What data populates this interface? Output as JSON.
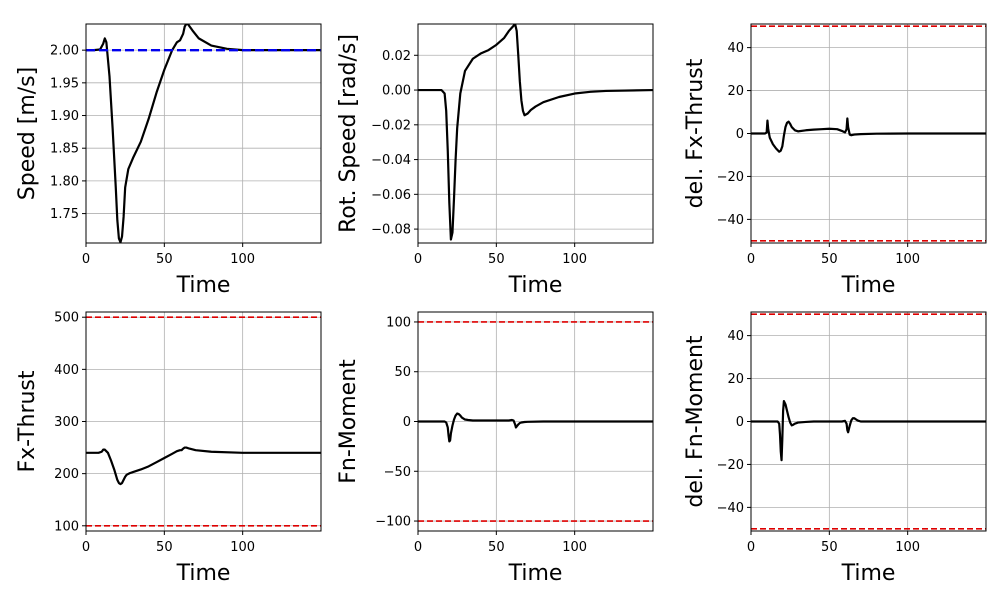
{
  "chart_data": [
    {
      "type": "line",
      "xlabel": "Time",
      "ylabel": "Speed [m/s]",
      "xlim": [
        0,
        150
      ],
      "ylim": [
        1.705,
        2.04
      ],
      "xticks": [
        0,
        50,
        100
      ],
      "xtick_labels": [
        "0",
        "50",
        "100"
      ],
      "yticks": [
        1.75,
        1.8,
        1.85,
        1.9,
        1.95,
        2.0
      ],
      "ytick_labels": [
        "1.75",
        "1.80",
        "1.85",
        "1.90",
        "1.95",
        "2.00"
      ],
      "grid": true,
      "series": [
        {
          "color": "#000000",
          "style": "solid",
          "x": [
            0,
            5,
            9,
            11,
            12,
            13,
            15,
            17,
            19,
            20,
            21,
            22,
            23,
            24,
            25,
            27,
            30,
            35,
            40,
            45,
            50,
            55,
            58,
            60,
            62,
            63,
            64,
            65,
            68,
            72,
            80,
            90,
            100,
            120,
            150
          ],
          "y": [
            2.0,
            2.0,
            2.001,
            2.01,
            2.018,
            2.012,
            1.96,
            1.88,
            1.79,
            1.74,
            1.712,
            1.706,
            1.715,
            1.745,
            1.79,
            1.818,
            1.835,
            1.86,
            1.895,
            1.935,
            1.97,
            2.0,
            2.012,
            2.015,
            2.025,
            2.036,
            2.04,
            2.04,
            2.03,
            2.018,
            2.007,
            2.002,
            2.0,
            2.0,
            2.0
          ]
        },
        {
          "color": "#0000ee",
          "style": "dashed",
          "x": [
            0,
            150
          ],
          "y": [
            2.0,
            2.0
          ]
        }
      ]
    },
    {
      "type": "line",
      "xlabel": "Time",
      "ylabel": "Rot. Speed [rad/s]",
      "xlim": [
        0,
        150
      ],
      "ylim": [
        -0.088,
        0.038
      ],
      "xticks": [
        0,
        50,
        100
      ],
      "xtick_labels": [
        "0",
        "50",
        "100"
      ],
      "yticks": [
        -0.08,
        -0.06,
        -0.04,
        -0.02,
        0.0,
        0.02
      ],
      "ytick_labels": [
        "−0.08",
        "−0.06",
        "−0.04",
        "−0.02",
        "0.00",
        "0.02"
      ],
      "grid": true,
      "series": [
        {
          "color": "#000000",
          "style": "solid",
          "x": [
            0,
            15,
            17,
            18,
            19,
            20,
            21,
            22,
            23,
            24,
            25,
            27,
            30,
            35,
            40,
            45,
            50,
            55,
            58,
            60,
            61,
            62,
            63,
            64,
            65,
            66,
            67,
            68,
            70,
            72,
            75,
            80,
            90,
            100,
            110,
            120,
            150
          ],
          "y": [
            0.0,
            0.0,
            -0.002,
            -0.012,
            -0.035,
            -0.065,
            -0.086,
            -0.082,
            -0.062,
            -0.04,
            -0.022,
            -0.002,
            0.011,
            0.018,
            0.021,
            0.023,
            0.026,
            0.03,
            0.034,
            0.036,
            0.037,
            0.038,
            0.034,
            0.02,
            0.005,
            -0.006,
            -0.012,
            -0.0145,
            -0.0135,
            -0.0115,
            -0.0095,
            -0.007,
            -0.004,
            -0.002,
            -0.001,
            -0.0005,
            0.0
          ]
        }
      ]
    },
    {
      "type": "line",
      "xlabel": "Time",
      "ylabel": "del. Fx-Thrust",
      "xlim": [
        0,
        150
      ],
      "ylim": [
        -51,
        51
      ],
      "xticks": [
        0,
        50,
        100
      ],
      "xtick_labels": [
        "0",
        "50",
        "100"
      ],
      "yticks": [
        -40,
        -20,
        0,
        20,
        40
      ],
      "ytick_labels": [
        "−40",
        "−20",
        "0",
        "20",
        "40"
      ],
      "grid": true,
      "series": [
        {
          "color": "#000000",
          "style": "solid",
          "x": [
            0,
            9,
            10,
            10.5,
            11,
            12,
            14,
            16,
            18,
            19,
            20,
            21,
            22,
            23,
            24,
            25,
            26,
            28,
            30,
            35,
            40,
            45,
            50,
            55,
            58,
            60,
            61,
            61.5,
            62,
            63,
            64,
            66,
            70,
            80,
            100,
            150
          ],
          "y": [
            0,
            0,
            0.5,
            6,
            2,
            -2,
            -5,
            -7,
            -8.5,
            -8,
            -6,
            -1,
            3,
            5,
            5.5,
            4.5,
            3,
            1.5,
            1,
            1.5,
            1.8,
            2,
            2.2,
            2,
            1.2,
            0.5,
            2,
            7,
            3,
            -0.5,
            -0.8,
            -0.5,
            -0.3,
            -0.1,
            0,
            0
          ]
        },
        {
          "color": "#dd0000",
          "style": "dashed",
          "x": [
            0,
            150
          ],
          "y": [
            50,
            50
          ]
        },
        {
          "color": "#dd0000",
          "style": "dashed",
          "x": [
            0,
            150
          ],
          "y": [
            -50,
            -50
          ]
        }
      ]
    },
    {
      "type": "line",
      "xlabel": "Time",
      "ylabel": "Fx-Thrust",
      "xlim": [
        0,
        150
      ],
      "ylim": [
        90,
        510
      ],
      "xticks": [
        0,
        50,
        100
      ],
      "xtick_labels": [
        "0",
        "50",
        "100"
      ],
      "yticks": [
        100,
        200,
        300,
        400,
        500
      ],
      "ytick_labels": [
        "100",
        "200",
        "300",
        "400",
        "500"
      ],
      "grid": true,
      "series": [
        {
          "color": "#000000",
          "style": "solid",
          "x": [
            0,
            8,
            10,
            11,
            12,
            14,
            16,
            18,
            19,
            20,
            21,
            22,
            23,
            24,
            25,
            26,
            28,
            30,
            35,
            40,
            45,
            50,
            55,
            58,
            60,
            61,
            62,
            63,
            64,
            66,
            70,
            80,
            100,
            150
          ],
          "y": [
            240,
            240,
            242,
            246,
            246,
            240,
            225,
            208,
            198,
            188,
            182,
            180,
            182,
            188,
            194,
            198,
            201,
            203,
            208,
            214,
            222,
            230,
            238,
            243,
            245,
            245,
            248,
            250,
            250,
            248,
            245,
            242,
            240,
            240
          ]
        },
        {
          "color": "#dd0000",
          "style": "dashed",
          "x": [
            0,
            150
          ],
          "y": [
            500,
            500
          ]
        },
        {
          "color": "#dd0000",
          "style": "dashed",
          "x": [
            0,
            150
          ],
          "y": [
            100,
            100
          ]
        }
      ]
    },
    {
      "type": "line",
      "xlabel": "Time",
      "ylabel": "Fn-Moment",
      "xlim": [
        0,
        150
      ],
      "ylim": [
        -110,
        110
      ],
      "xticks": [
        0,
        50,
        100
      ],
      "xtick_labels": [
        "0",
        "50",
        "100"
      ],
      "yticks": [
        -100,
        -50,
        0,
        50,
        100
      ],
      "ytick_labels": [
        "−100",
        "−50",
        "0",
        "50",
        "100"
      ],
      "grid": true,
      "series": [
        {
          "color": "#000000",
          "style": "solid",
          "x": [
            0,
            17,
            18,
            19,
            19.5,
            20,
            20.5,
            21,
            22,
            23,
            24,
            25,
            26,
            27,
            28,
            30,
            32,
            35,
            40,
            50,
            58,
            60,
            61,
            62,
            62.5,
            63,
            64,
            65,
            66,
            68,
            70,
            80,
            100,
            150
          ],
          "y": [
            0,
            0,
            -1,
            -6,
            -14,
            -20,
            -19,
            -12,
            -4,
            2,
            6,
            8,
            7.5,
            6,
            4,
            2,
            1.5,
            1,
            1,
            1,
            1,
            1.5,
            1,
            -3,
            -6,
            -5,
            -3,
            -1.5,
            -1,
            -0.5,
            -0.3,
            0,
            0,
            0
          ]
        },
        {
          "color": "#dd0000",
          "style": "dashed",
          "x": [
            0,
            150
          ],
          "y": [
            100,
            100
          ]
        },
        {
          "color": "#dd0000",
          "style": "dashed",
          "x": [
            0,
            150
          ],
          "y": [
            -100,
            -100
          ]
        }
      ]
    },
    {
      "type": "line",
      "xlabel": "Time",
      "ylabel": "del. Fn-Moment",
      "xlim": [
        0,
        150
      ],
      "ylim": [
        -51,
        51
      ],
      "xticks": [
        0,
        50,
        100
      ],
      "xtick_labels": [
        "0",
        "50",
        "100"
      ],
      "yticks": [
        -40,
        -20,
        0,
        20,
        40
      ],
      "ytick_labels": [
        "−40",
        "−20",
        "0",
        "20",
        "40"
      ],
      "grid": true,
      "series": [
        {
          "color": "#000000",
          "style": "solid",
          "x": [
            0,
            17,
            18,
            18.5,
            19,
            19.5,
            20,
            20.5,
            21,
            22,
            23,
            24,
            25,
            26,
            27,
            28,
            30,
            35,
            40,
            50,
            58,
            60,
            61,
            61.5,
            62,
            63,
            64,
            65,
            66,
            67,
            68,
            70,
            75,
            100,
            150
          ],
          "y": [
            0,
            0,
            -1,
            -6,
            -14,
            -18,
            -8,
            5,
            9.5,
            8,
            5,
            2,
            -0.5,
            -1.8,
            -1.5,
            -1,
            -0.5,
            -0.2,
            0,
            0,
            0,
            0.3,
            -1,
            -4,
            -5,
            -2,
            0.5,
            1.5,
            1.5,
            1,
            0.5,
            0,
            0,
            0,
            0
          ]
        },
        {
          "color": "#dd0000",
          "style": "dashed",
          "x": [
            0,
            150
          ],
          "y": [
            50,
            50
          ]
        },
        {
          "color": "#dd0000",
          "style": "dashed",
          "x": [
            0,
            150
          ],
          "y": [
            -50,
            -50
          ]
        }
      ]
    }
  ]
}
